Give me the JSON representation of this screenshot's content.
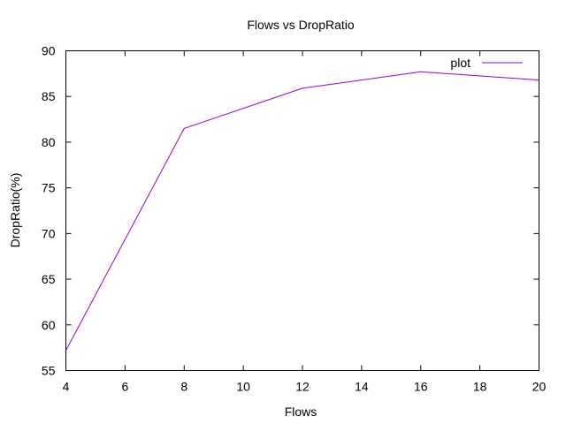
{
  "chart_data": {
    "type": "line",
    "title": "Flows vs DropRatio",
    "xlabel": "Flows",
    "ylabel": "DropRatio(%)",
    "xlim": [
      4,
      20
    ],
    "ylim": [
      55,
      90
    ],
    "xticks": [
      4,
      6,
      8,
      10,
      12,
      14,
      16,
      18,
      20
    ],
    "yticks": [
      55,
      60,
      65,
      70,
      75,
      80,
      85,
      90
    ],
    "grid": false,
    "legend_position": "top-right",
    "series": [
      {
        "name": "plot",
        "color": "#9400d3",
        "x": [
          4,
          8,
          12,
          16,
          20
        ],
        "y": [
          57.2,
          81.5,
          85.9,
          87.7,
          86.8
        ]
      }
    ]
  }
}
